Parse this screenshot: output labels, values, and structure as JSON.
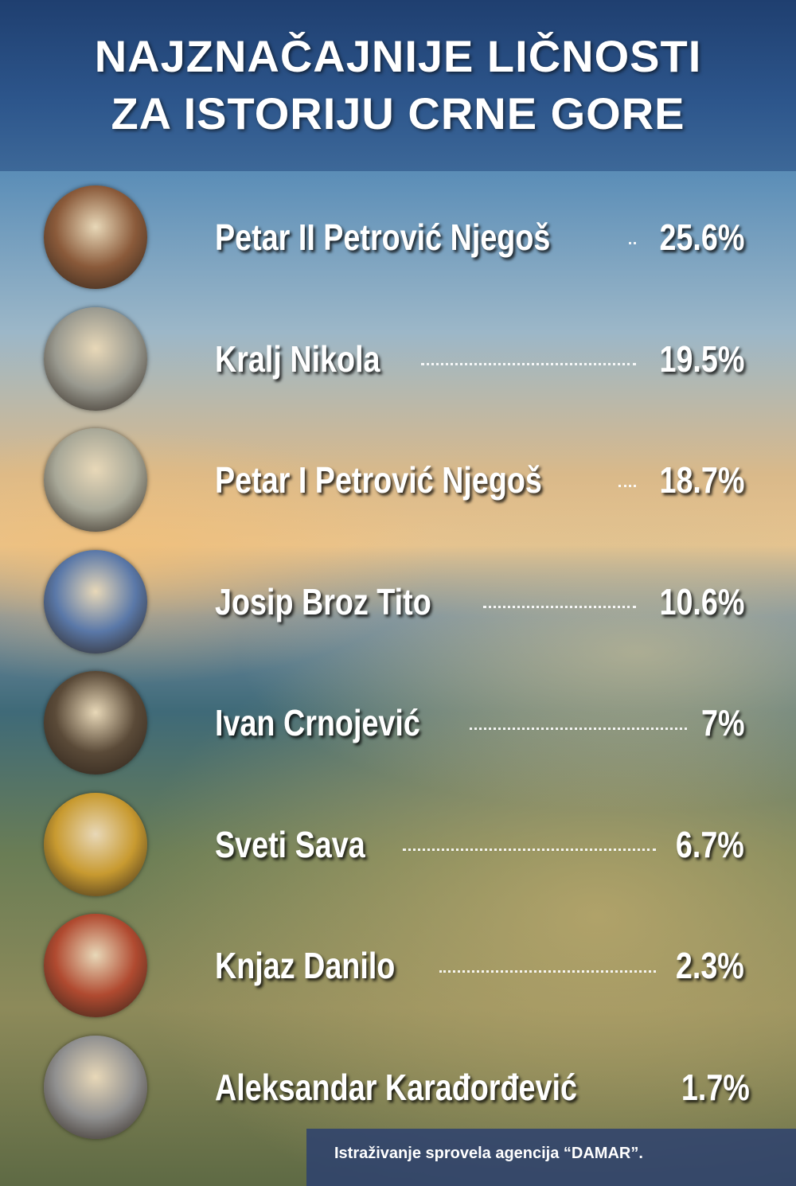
{
  "header": {
    "title_line1": "NAJZNAČAJNIJE LIČNOSTI",
    "title_line2": "ZA ISTORIJU CRNE GORE"
  },
  "chart_data": {
    "type": "table",
    "title": "NAJZNAČAJNIJE LIČNOSTI ZA ISTORIJU CRNE GORE",
    "categories": [
      "Petar II Petrović Njegoš",
      "Kralj Nikola",
      "Petar I Petrović Njegoš",
      "Josip Broz Tito",
      "Ivan Crnojević",
      "Sveti Sava",
      "Knjaz Danilo",
      "Aleksandar Karađorđević"
    ],
    "labels": [
      "25.6%",
      "19.5%",
      "18.7%",
      "10.6%",
      "7%",
      "6.7%",
      "2.3%",
      "1.7%"
    ],
    "values": [
      25.6,
      19.5,
      18.7,
      10.6,
      7,
      6.7,
      2.3,
      1.7
    ]
  },
  "footer": {
    "source": "Istraživanje sprovela agencija “DAMAR”."
  }
}
